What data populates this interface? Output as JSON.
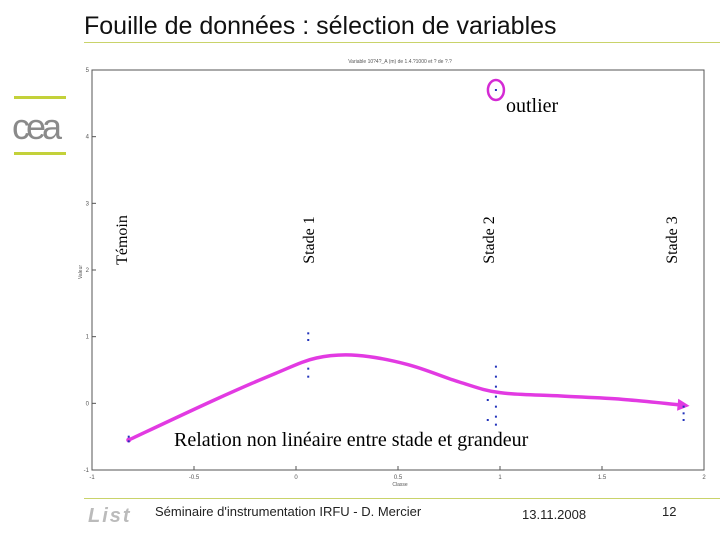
{
  "slide": {
    "title": "Fouille de données : sélection de variables",
    "logo_text": "cea"
  },
  "annotations": {
    "outlier": "outlier",
    "relation": "Relation non linéaire entre stade et grandeur"
  },
  "stages": [
    "Témoin",
    "Stade 1",
    "Stade 2",
    "Stade 3"
  ],
  "chart_data": {
    "type": "scatter",
    "title": "Variable 10?4?_A (m)  de 1.4.?1000 et ? de ?.?",
    "xlabel": "Classe",
    "ylabel": "Valeur",
    "xlim": [
      -1,
      2
    ],
    "ylim": [
      -1,
      5
    ],
    "x_ticks": [
      -1,
      -0.5,
      0,
      0.5,
      1,
      1.5,
      2
    ],
    "x_tick_labels": [
      "-1",
      "-0.5",
      "0",
      "0.5",
      "1",
      "1.5",
      "2"
    ],
    "y_ticks": [
      -1,
      0,
      1,
      2,
      3,
      4,
      5
    ],
    "grid": false,
    "points": [
      {
        "x": -0.82,
        "y": -0.57
      },
      {
        "x": -0.82,
        "y": -0.5
      },
      {
        "x": 0.06,
        "y": 1.05
      },
      {
        "x": 0.06,
        "y": 0.95
      },
      {
        "x": 0.06,
        "y": 0.52
      },
      {
        "x": 0.06,
        "y": 0.4
      },
      {
        "x": 0.98,
        "y": 0.55
      },
      {
        "x": 0.98,
        "y": 0.4
      },
      {
        "x": 0.98,
        "y": 0.25
      },
      {
        "x": 0.98,
        "y": 0.1
      },
      {
        "x": 0.98,
        "y": -0.05
      },
      {
        "x": 0.98,
        "y": -0.2
      },
      {
        "x": 0.98,
        "y": -0.32
      },
      {
        "x": 0.94,
        "y": 0.05
      },
      {
        "x": 0.94,
        "y": -0.25
      },
      {
        "x": 0.98,
        "y": 4.7
      },
      {
        "x": 1.9,
        "y": -0.05
      },
      {
        "x": 1.9,
        "y": -0.15
      },
      {
        "x": 1.9,
        "y": -0.25
      }
    ],
    "outlier_point": {
      "x": 0.98,
      "y": 4.7
    },
    "trend_curve": [
      {
        "x": -0.82,
        "y": -0.55
      },
      {
        "x": -0.4,
        "y": 0.05
      },
      {
        "x": -0.1,
        "y": 0.45
      },
      {
        "x": 0.1,
        "y": 0.68
      },
      {
        "x": 0.3,
        "y": 0.72
      },
      {
        "x": 0.55,
        "y": 0.58
      },
      {
        "x": 0.8,
        "y": 0.32
      },
      {
        "x": 1.0,
        "y": 0.16
      },
      {
        "x": 1.3,
        "y": 0.11
      },
      {
        "x": 1.6,
        "y": 0.06
      },
      {
        "x": 1.9,
        "y": -0.03
      }
    ],
    "colors": {
      "points": "#2233bb",
      "trend": "#e23ae2",
      "outlier_ring": "#d42ad4"
    }
  },
  "footer": {
    "logo": "List",
    "seminar": "Séminaire d'instrumentation IRFU - D. Mercier",
    "date": "13.11.2008",
    "page": "12"
  }
}
